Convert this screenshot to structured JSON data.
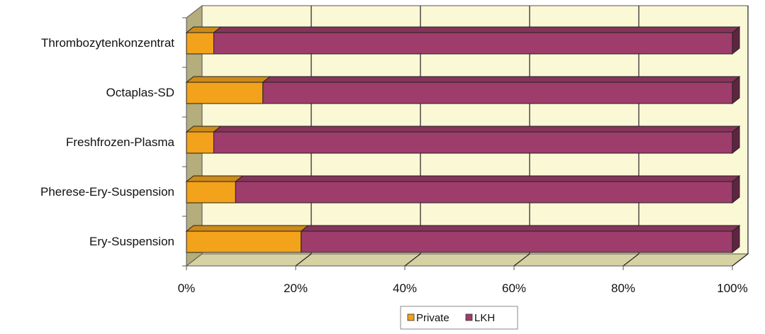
{
  "chart_data": {
    "type": "bar",
    "orientation": "horizontal",
    "stacked": "percent",
    "three_d": true,
    "categories": [
      "Ery-Suspension",
      "Pherese-Ery-Suspension",
      "Freshfrozen-Plasma",
      "Octaplas-SD",
      "Thrombozytenkonzentrat"
    ],
    "series": [
      {
        "name": "Private",
        "values": [
          21,
          9,
          5,
          14,
          5
        ],
        "color": "#f2a21b"
      },
      {
        "name": "LKH",
        "values": [
          79,
          91,
          95,
          86,
          95
        ],
        "color": "#9e3d6b"
      }
    ],
    "x_ticks": [
      "0%",
      "20%",
      "40%",
      "60%",
      "80%",
      "100%"
    ],
    "xlim": [
      0,
      100
    ],
    "grid": true,
    "legend_position": "bottom",
    "colors": {
      "plot_wall": "#fbf8d6",
      "floor": "#d6d2a3",
      "side_wall": "#b4ad7c"
    }
  }
}
